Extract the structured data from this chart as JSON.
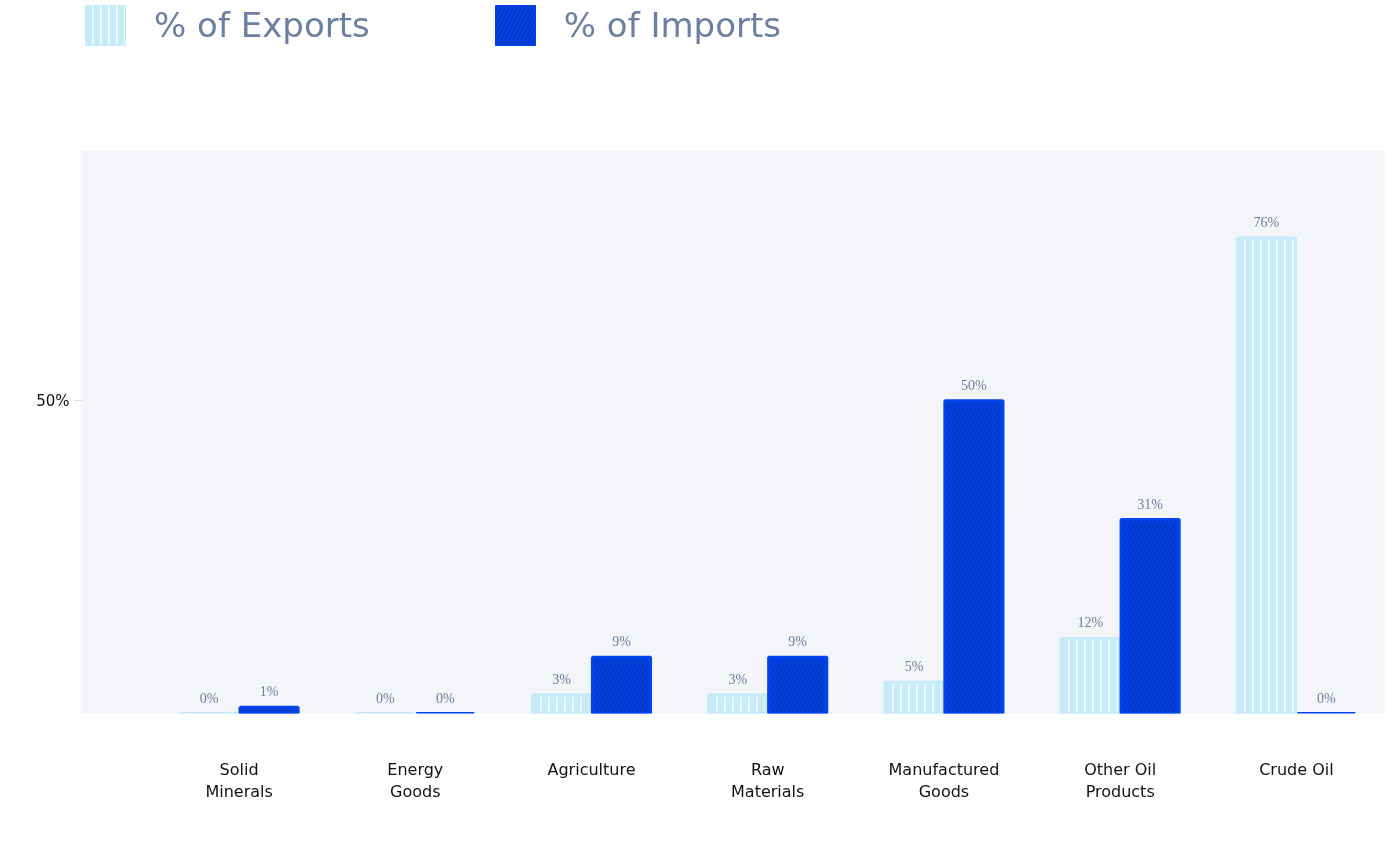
{
  "chart_data": {
    "type": "bar",
    "categories": [
      "Solid\nMinerals",
      "Energy\nGoods",
      "Agriculture",
      "Raw\nMaterials",
      "Manufactured\nGoods",
      "Other Oil\nProducts",
      "Crude Oil"
    ],
    "series": [
      {
        "name": "% of Exports",
        "color": "#c5eaf8",
        "values": [
          0,
          0,
          3,
          3,
          5,
          12,
          76
        ],
        "value_labels": [
          "0%",
          "0%",
          "3%",
          "3%",
          "5%",
          "12%",
          "76%"
        ]
      },
      {
        "name": "% of Imports",
        "color": "#0044ee",
        "values": [
          1,
          0,
          9,
          9,
          50,
          31,
          0
        ],
        "value_labels": [
          "1%",
          "0%",
          "9%",
          "9%",
          "50%",
          "31%",
          "0%"
        ]
      }
    ],
    "ylim": [
      0,
      90
    ],
    "yticks": [
      {
        "value": 50,
        "label": "50%"
      }
    ],
    "grid": false,
    "legend": "top left"
  }
}
